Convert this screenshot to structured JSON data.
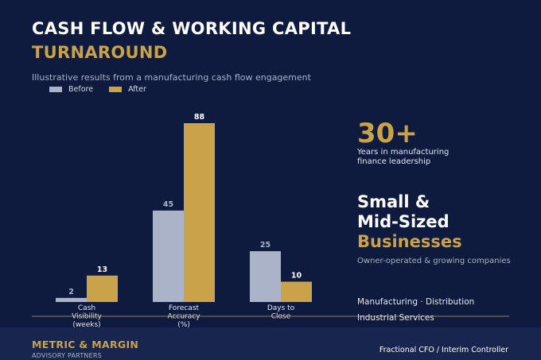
{
  "header": {
    "title_line1": "CASH FLOW & WORKING CAPITAL",
    "title_line2": "TURNAROUND",
    "subtitle": "Illustrative results from a manufacturing cash flow engagement"
  },
  "chart_data": {
    "type": "bar",
    "categories": [
      "Cash Visibility (weeks)",
      "Forecast Accuracy (%)",
      "Days to Close"
    ],
    "category_lines": [
      [
        "Cash",
        "Visibility",
        "(weeks)"
      ],
      [
        "Forecast",
        "Accuracy",
        "(%)"
      ],
      [
        "Days to",
        "Close"
      ]
    ],
    "series": [
      {
        "name": "Before",
        "values": [
          2,
          45,
          25
        ],
        "color": "#abb3c9"
      },
      {
        "name": "After",
        "values": [
          13,
          88,
          10
        ],
        "color": "#c9a24a"
      }
    ],
    "ylim": [
      0,
      90
    ],
    "grid": false,
    "legend_position": "top-left"
  },
  "sidebar": {
    "stat_value": "30+",
    "stat_line1": "Years in manufacturing",
    "stat_line2": "finance leadership",
    "headline_line1": "Small &",
    "headline_line2": "Mid-Sized",
    "headline_line3": "Businesses",
    "owner_text": "Owner-operated & growing companies",
    "industries_line1": "Manufacturing · Distribution",
    "industries_line2": "Industrial Services"
  },
  "footer": {
    "brand": "METRIC & MARGIN",
    "brand_sub": "ADVISORY PARTNERS",
    "role": "Fractional CFO / Interim Controller"
  },
  "colors": {
    "background": "#0e1a3e",
    "footer_background": "#18264f",
    "accent_gold": "#c9a24a",
    "before_bar": "#abb3c9"
  }
}
